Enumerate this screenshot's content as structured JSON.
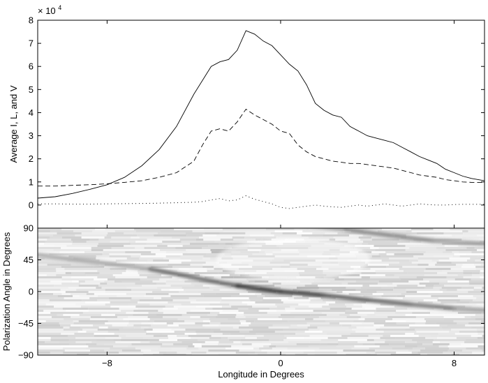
{
  "chart_data": [
    {
      "type": "line",
      "panel": "top",
      "ylabel": "Average I, L, and V",
      "exponent_label": "× 10",
      "exponent_power": "4",
      "xlim": [
        -11.2,
        9.4
      ],
      "ylim": [
        -1,
        8
      ],
      "yticks": [
        0,
        1,
        2,
        3,
        4,
        5,
        6,
        7,
        8
      ],
      "ytick_labels": [
        "0",
        "1",
        "2",
        "3",
        "4",
        "5",
        "6",
        "7",
        "8"
      ],
      "grid": false,
      "legend": "none",
      "series": [
        {
          "style": "solid",
          "x": [
            -11.2,
            -10.4,
            -9.6,
            -8.8,
            -8.0,
            -7.2,
            -6.4,
            -5.6,
            -4.8,
            -4.0,
            -3.6,
            -3.2,
            -2.8,
            -2.4,
            -2.0,
            -1.6,
            -1.2,
            -0.8,
            -0.4,
            0.0,
            0.4,
            0.8,
            1.2,
            1.6,
            2.0,
            2.4,
            2.8,
            3.2,
            3.6,
            4.0,
            4.4,
            4.8,
            5.2,
            5.6,
            6.0,
            6.4,
            6.8,
            7.2,
            7.6,
            8.0,
            8.4,
            8.8,
            9.4
          ],
          "y": [
            0.3,
            0.36,
            0.5,
            0.68,
            0.88,
            1.2,
            1.7,
            2.4,
            3.4,
            4.8,
            5.4,
            6.0,
            6.2,
            6.3,
            6.7,
            7.55,
            7.4,
            7.1,
            6.9,
            6.5,
            6.1,
            5.8,
            5.2,
            4.4,
            4.1,
            3.9,
            3.8,
            3.4,
            3.2,
            3.0,
            2.9,
            2.8,
            2.7,
            2.5,
            2.3,
            2.1,
            1.95,
            1.8,
            1.55,
            1.4,
            1.25,
            1.15,
            1.05
          ]
        },
        {
          "style": "dashed",
          "x": [
            -11.2,
            -10.4,
            -9.6,
            -8.8,
            -8.0,
            -7.2,
            -6.4,
            -5.6,
            -4.8,
            -4.0,
            -3.6,
            -3.2,
            -2.8,
            -2.4,
            -2.0,
            -1.6,
            -1.2,
            -0.8,
            -0.4,
            0.0,
            0.4,
            0.8,
            1.2,
            1.6,
            2.0,
            2.4,
            2.8,
            3.2,
            3.6,
            4.0,
            4.4,
            4.8,
            5.2,
            5.6,
            6.0,
            6.4,
            6.8,
            7.2,
            7.6,
            8.0,
            8.4,
            8.8,
            9.4
          ],
          "y": [
            0.82,
            0.82,
            0.85,
            0.88,
            0.92,
            0.98,
            1.05,
            1.2,
            1.4,
            1.9,
            2.6,
            3.2,
            3.3,
            3.2,
            3.6,
            4.15,
            3.9,
            3.7,
            3.5,
            3.2,
            3.1,
            2.6,
            2.3,
            2.1,
            2.0,
            1.9,
            1.85,
            1.8,
            1.8,
            1.75,
            1.7,
            1.65,
            1.6,
            1.5,
            1.4,
            1.3,
            1.25,
            1.2,
            1.1,
            1.05,
            1.0,
            0.98,
            0.98
          ]
        },
        {
          "style": "dotted",
          "x": [
            -11.2,
            -10.4,
            -9.6,
            -8.8,
            -8.0,
            -7.2,
            -6.4,
            -5.6,
            -4.8,
            -4.0,
            -3.6,
            -3.2,
            -2.8,
            -2.4,
            -2.0,
            -1.6,
            -1.2,
            -0.8,
            -0.4,
            0.0,
            0.4,
            0.8,
            1.2,
            1.6,
            2.0,
            2.4,
            2.8,
            3.2,
            3.6,
            4.0,
            4.4,
            4.8,
            5.2,
            5.6,
            6.0,
            6.4,
            6.8,
            7.2,
            7.6,
            8.0,
            8.4,
            8.8,
            9.4
          ],
          "y": [
            0.05,
            0.05,
            0.04,
            0.04,
            0.05,
            0.06,
            0.07,
            0.08,
            0.1,
            0.12,
            0.15,
            0.22,
            0.28,
            0.18,
            0.22,
            0.4,
            0.25,
            0.15,
            0.05,
            -0.1,
            -0.15,
            -0.1,
            -0.05,
            0.0,
            -0.05,
            -0.08,
            -0.1,
            -0.05,
            0.0,
            -0.05,
            0.0,
            0.05,
            0.0,
            -0.05,
            0.0,
            0.05,
            0.02,
            0.0,
            0.0,
            0.02,
            0.03,
            0.03,
            0.03
          ]
        }
      ]
    },
    {
      "type": "heatmap",
      "panel": "bottom",
      "xlabel": "Longitude in Degrees",
      "ylabel": "Polarization Angle in Degrees",
      "xlim": [
        -11.2,
        9.4
      ],
      "ylim": [
        -90,
        90
      ],
      "xticks": [
        -8,
        0,
        8
      ],
      "xtick_labels": [
        "−8",
        "0",
        "8"
      ],
      "yticks": [
        90,
        45,
        0,
        -45,
        -90
      ],
      "ytick_labels": [
        "90",
        "45",
        "0",
        "−45",
        "−90"
      ],
      "colormap": "grayscale (white = low, black = high)",
      "tracks": [
        {
          "name": "main",
          "x": [
            -11.2,
            -6,
            -2,
            0,
            2,
            4,
            6,
            8,
            9.4
          ],
          "y": [
            52,
            32,
            8,
            0,
            -5,
            -12,
            -18,
            -24,
            -26
          ],
          "strength": [
            0.18,
            0.35,
            0.75,
            0.85,
            0.7,
            0.55,
            0.6,
            0.35,
            0.3
          ]
        },
        {
          "name": "upper",
          "x": [
            1,
            3,
            5,
            7,
            9.4
          ],
          "y": [
            95,
            88,
            80,
            72,
            68
          ],
          "strength": [
            0.2,
            0.4,
            0.45,
            0.35,
            0.3
          ]
        }
      ]
    }
  ]
}
